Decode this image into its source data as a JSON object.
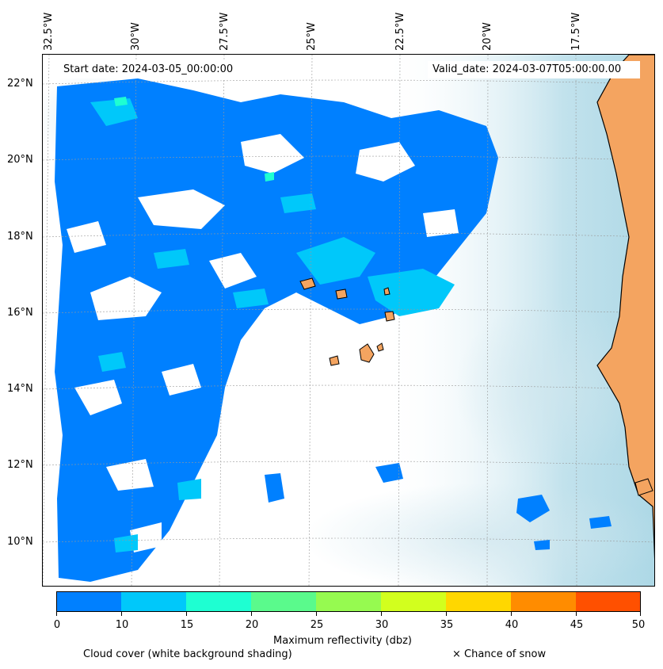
{
  "map": {
    "start_date_label": "Start date: 2024-03-05_00:00:00",
    "valid_date_label": "Valid_date: 2024-03-07T05:00:00.00",
    "lon_labels": [
      "32.5°W",
      "30°W",
      "27.5°W",
      "25°W",
      "22.5°W",
      "20°W",
      "17.5°W"
    ],
    "lat_labels": [
      "22°N",
      "20°N",
      "18°N",
      "16°N",
      "14°N",
      "12°N",
      "10°N"
    ],
    "extent": {
      "lon_min": -33.0,
      "lon_max": -15.5,
      "lat_min": 9.0,
      "lat_max": 22.7
    },
    "colors": {
      "land": "#f4a460",
      "ocean_shading": "#add8e6",
      "cloud_background": "#ffffff",
      "coastline": "#000000"
    }
  },
  "colorbar": {
    "label": "Maximum reflectivity (dbz)",
    "ticks": [
      "0",
      "10",
      "15",
      "20",
      "25",
      "30",
      "35",
      "40",
      "45",
      "50"
    ],
    "colors": [
      "#0080ff",
      "#00c8fa",
      "#1effd2",
      "#5afa8c",
      "#96fa50",
      "#d2ff1e",
      "#ffd700",
      "#ff8c00",
      "#ff5000"
    ]
  },
  "legend": {
    "cloud_cover": "Cloud cover (white background shading)",
    "snow": "× Chance of snow"
  }
}
